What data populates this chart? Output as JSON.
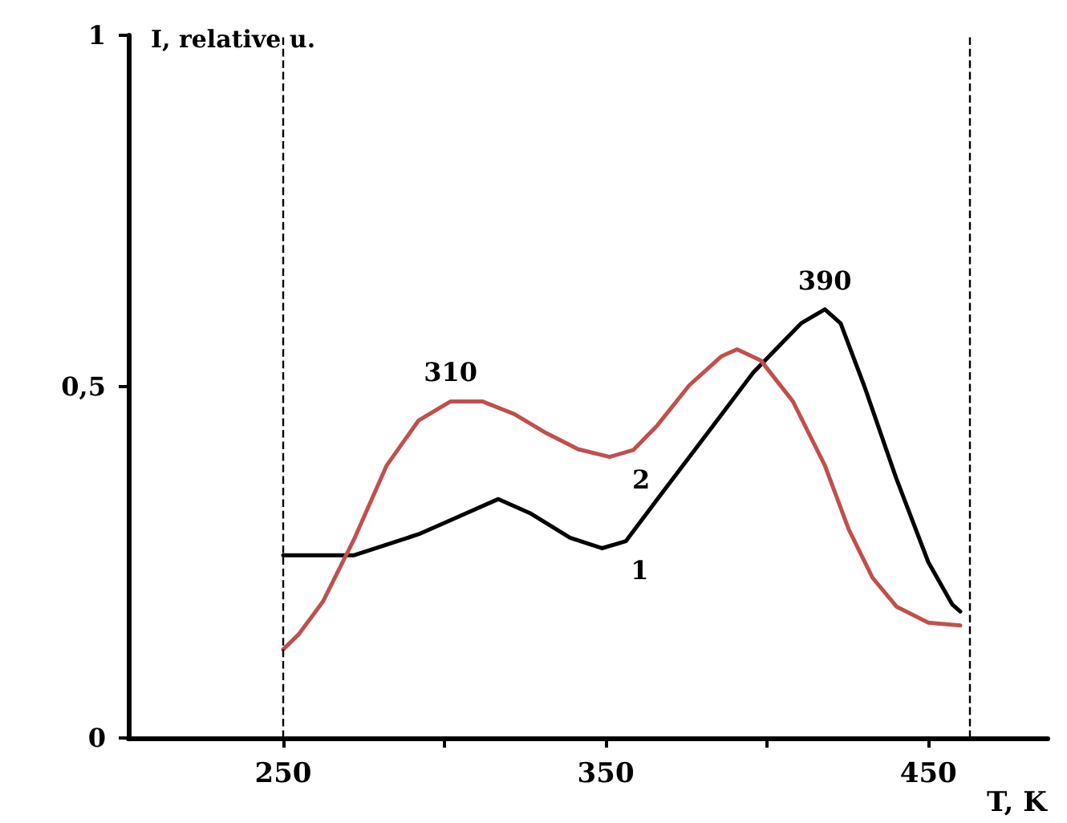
{
  "chart_data": {
    "type": "line",
    "xlabel": "T, K",
    "ylabel": "I, relative u.",
    "xlim": [
      202,
      487
    ],
    "ylim": [
      0,
      1
    ],
    "xticks": [
      250,
      {
        "value": 300,
        "label": null
      },
      350,
      {
        "value": 400,
        "label": null
      },
      450
    ],
    "yticks": [
      0,
      {
        "value": 0.5,
        "label": "0,5"
      },
      1
    ],
    "grid": false,
    "legend": false,
    "marker": "none",
    "line_style": "solid",
    "series": [
      {
        "name": "1",
        "color": "#000000",
        "x": [
          250,
          272,
          292,
          306.8,
          316.7,
          326.5,
          338.9,
          348.8,
          356.2,
          366,
          380.9,
          395.7,
          410.5,
          417.9,
          422.8,
          430.2,
          440,
          450,
          457.4,
          459.9
        ],
        "values": [
          0.26,
          0.26,
          0.29,
          0.32,
          0.34,
          0.32,
          0.285,
          0.27,
          0.28,
          0.34,
          0.43,
          0.52,
          0.59,
          0.61,
          0.59,
          0.5,
          0.37,
          0.25,
          0.19,
          0.18
        ]
      },
      {
        "name": "2",
        "color": "#c0504d",
        "x": [
          250,
          254.9,
          262.3,
          272.2,
          282.1,
          292,
          301.9,
          311.7,
          321.6,
          331.5,
          341.4,
          351.2,
          358.6,
          366,
          375.9,
          385.8,
          390.7,
          398.1,
          408,
          417.9,
          425.3,
          432.7,
          440.1,
          450,
          459.9
        ],
        "values": [
          0.126,
          0.148,
          0.194,
          0.285,
          0.388,
          0.452,
          0.479,
          0.479,
          0.461,
          0.434,
          0.411,
          0.4,
          0.41,
          0.445,
          0.502,
          0.543,
          0.553,
          0.537,
          0.479,
          0.388,
          0.297,
          0.228,
          0.187,
          0.164,
          0.16
        ]
      }
    ],
    "ref_lines": [
      {
        "axis": "x",
        "value": 250,
        "color": "#000000",
        "line_style": "dashed"
      },
      {
        "axis": "x",
        "value": 463,
        "color": "#000000",
        "line_style": "dashed"
      }
    ],
    "annotations": [
      {
        "text": "310",
        "x": 301.9,
        "y": 0.479
      },
      {
        "text": "390",
        "x": 417.9,
        "y": 0.61
      }
    ]
  }
}
